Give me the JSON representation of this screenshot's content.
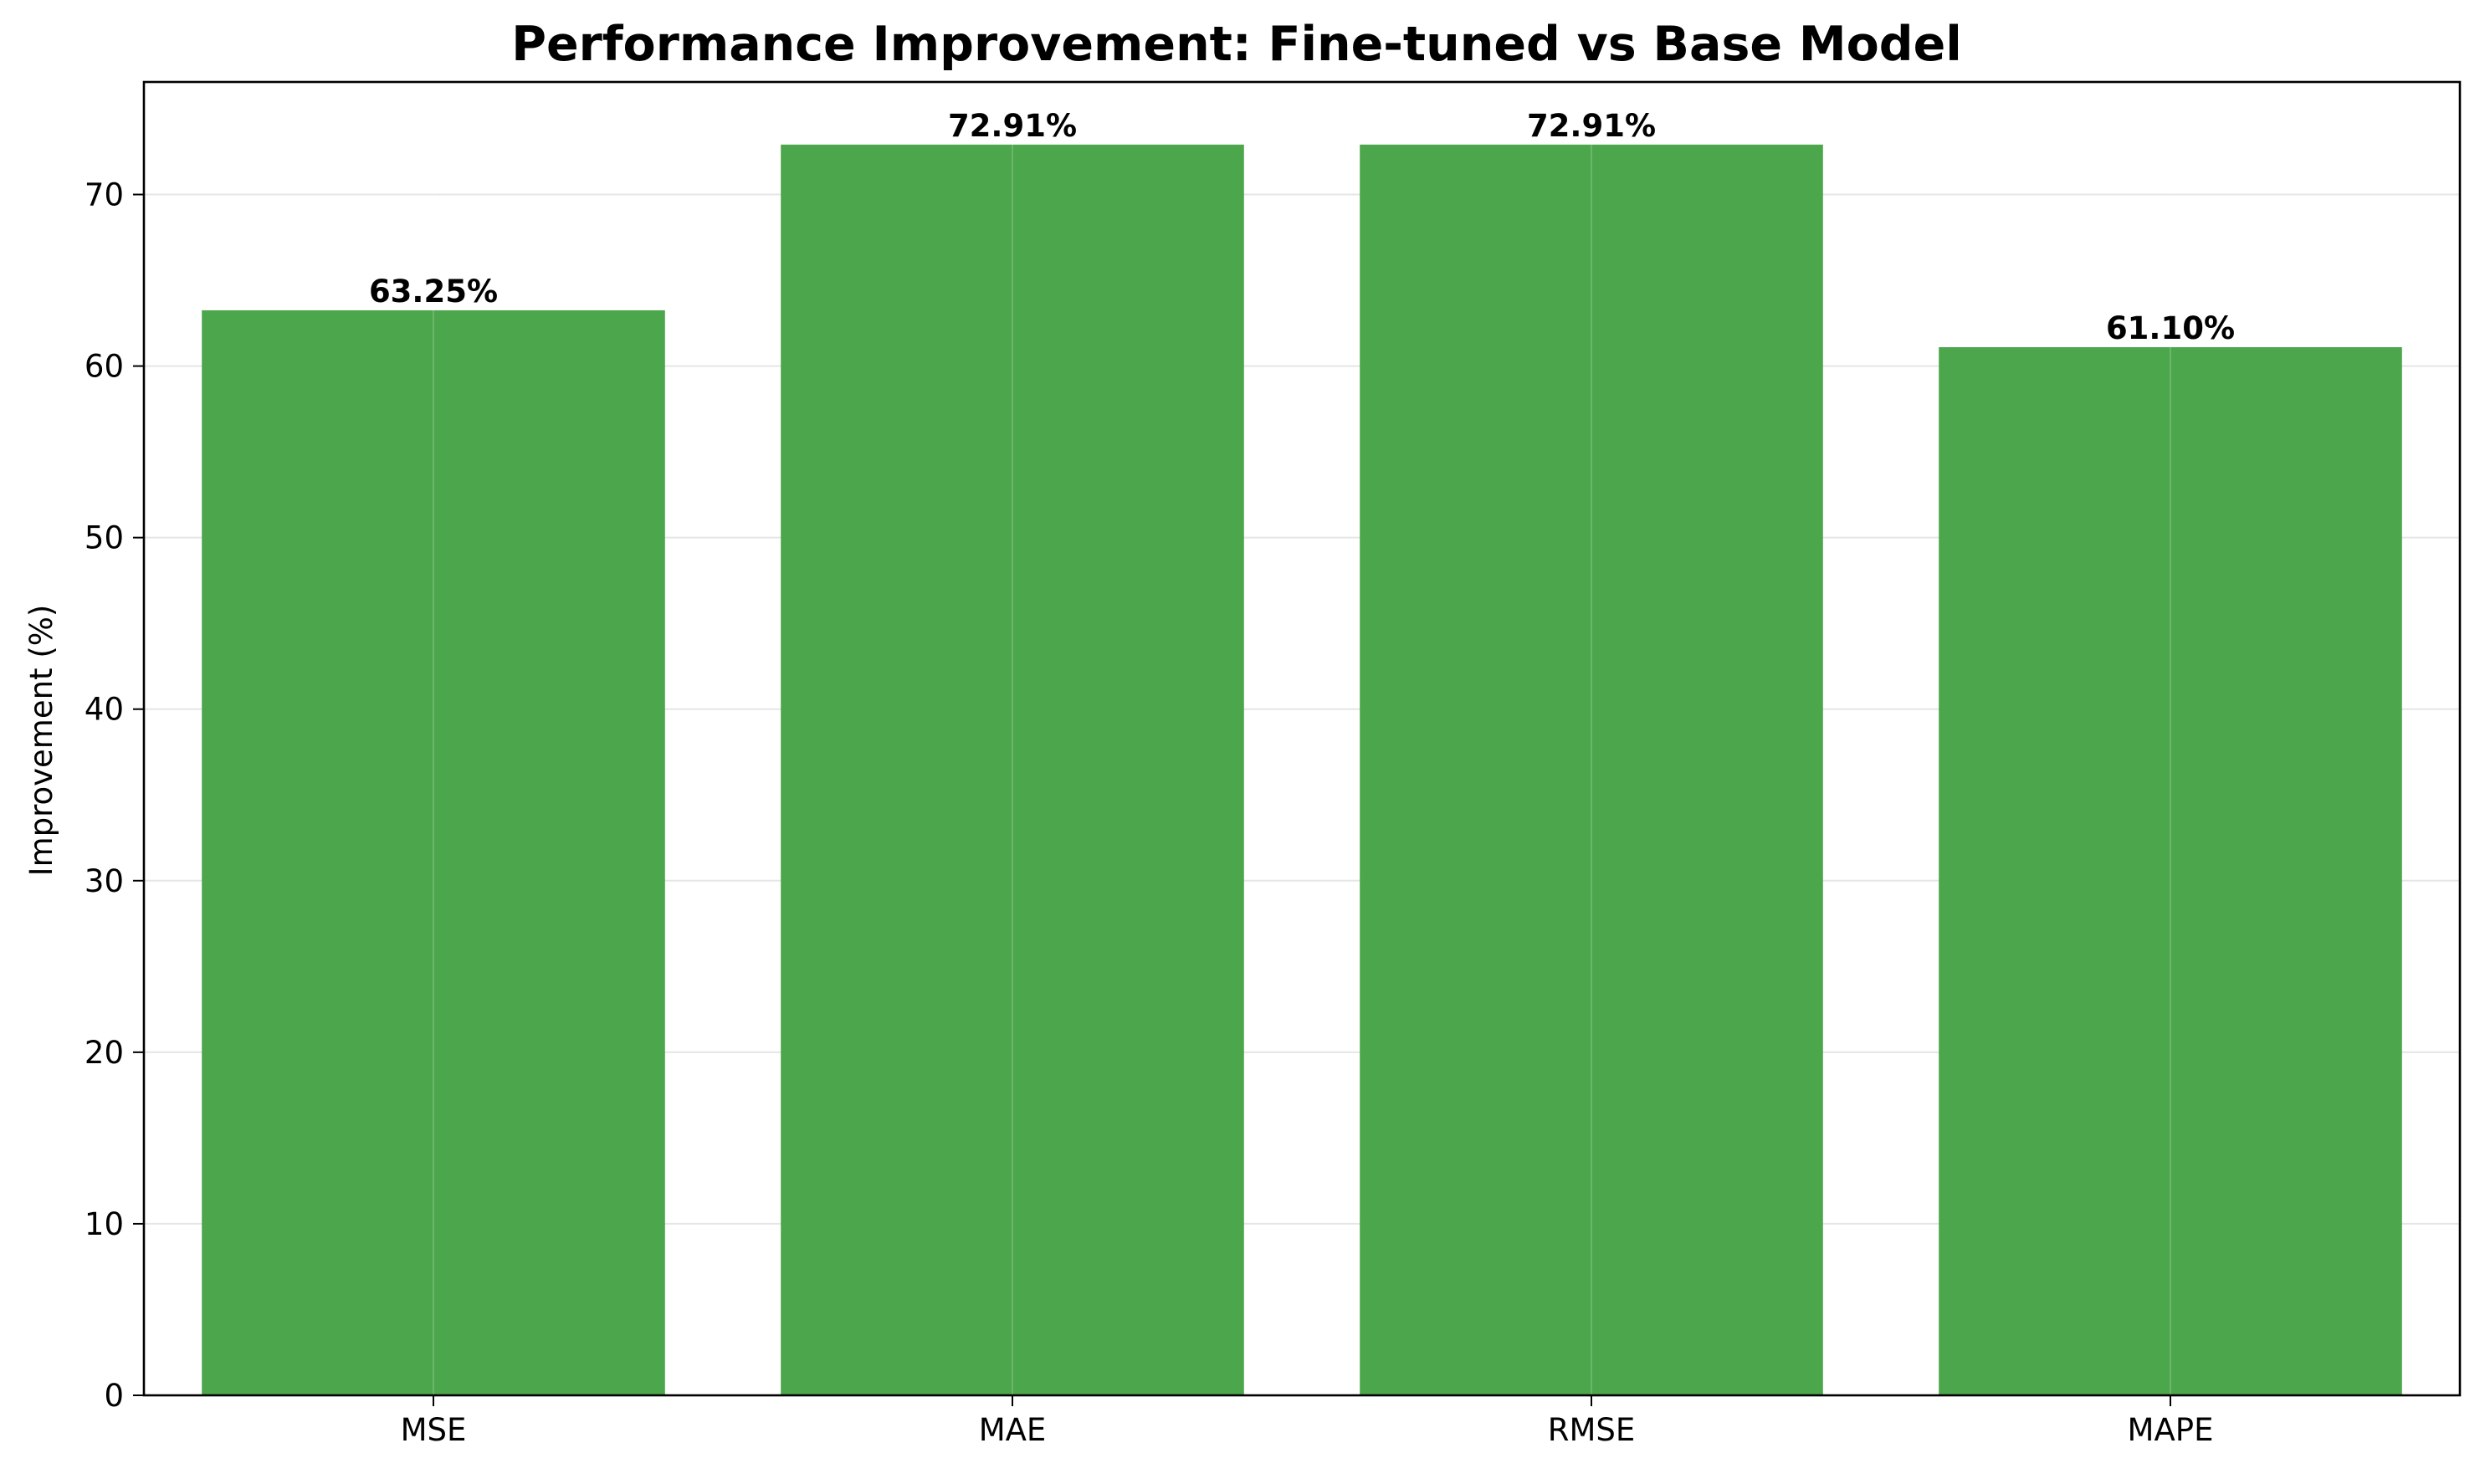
{
  "chart_data": {
    "type": "bar",
    "title": "Performance Improvement: Fine-tuned vs Base Model",
    "xlabel": "",
    "ylabel": "Improvement (%)",
    "categories": [
      "MSE",
      "MAE",
      "RMSE",
      "MAPE"
    ],
    "values": [
      63.25,
      72.91,
      72.91,
      61.1
    ],
    "value_labels": [
      "63.25%",
      "72.91%",
      "72.91%",
      "61.10%"
    ],
    "ylim": [
      0,
      76.56
    ],
    "yticks": [
      0,
      10,
      20,
      30,
      40,
      50,
      60,
      70
    ],
    "ytick_labels": [
      "0",
      "10",
      "20",
      "30",
      "40",
      "50",
      "60",
      "70"
    ],
    "grid": true,
    "bar_color": "#4ca64c",
    "grid_color": "#e6e6e6"
  }
}
